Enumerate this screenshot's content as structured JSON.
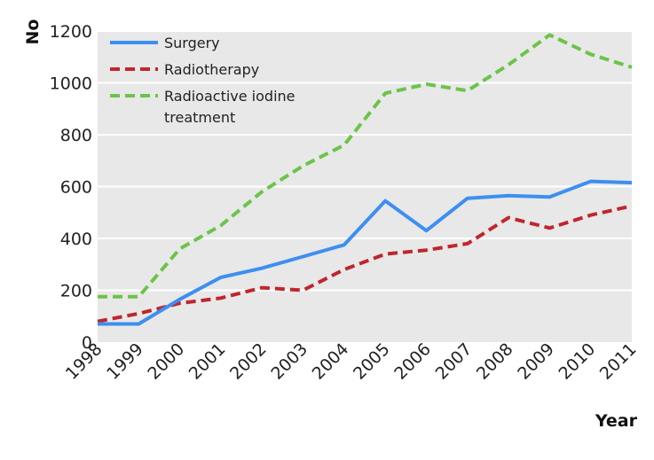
{
  "chart_data": {
    "type": "line",
    "title": "",
    "xlabel": "Year",
    "ylabel": "No",
    "x": [
      "1998",
      "1999",
      "2000",
      "2001",
      "2002",
      "2003",
      "2004",
      "2005",
      "2006",
      "2007",
      "2008",
      "2009",
      "2010",
      "2011"
    ],
    "ylim": [
      0,
      1200
    ],
    "yticks": [
      "0",
      "200",
      "400",
      "600",
      "800",
      "1000",
      "1200"
    ],
    "grid": "horizontal",
    "plot_background": "#e8e8e8",
    "legend_position": "top-left",
    "series": [
      {
        "name": "Surgery",
        "legend_lines": [
          "Surgery"
        ],
        "color": "#3d8ff0",
        "dash": "solid",
        "values": [
          70,
          70,
          165,
          250,
          285,
          330,
          375,
          545,
          430,
          555,
          565,
          560,
          620,
          615
        ]
      },
      {
        "name": "Radiotherapy",
        "legend_lines": [
          "Radiotherapy"
        ],
        "color": "#c0262d",
        "dash": "dashed",
        "values": [
          80,
          110,
          150,
          170,
          210,
          200,
          280,
          340,
          355,
          380,
          480,
          440,
          490,
          525
        ]
      },
      {
        "name": "Radioactive iodine treatment",
        "legend_lines": [
          "Radioactive iodine",
          "treatment"
        ],
        "color": "#6cc448",
        "dash": "dashed",
        "values": [
          175,
          175,
          360,
          450,
          580,
          680,
          760,
          960,
          995,
          970,
          1070,
          1185,
          1110,
          1060
        ]
      }
    ]
  }
}
